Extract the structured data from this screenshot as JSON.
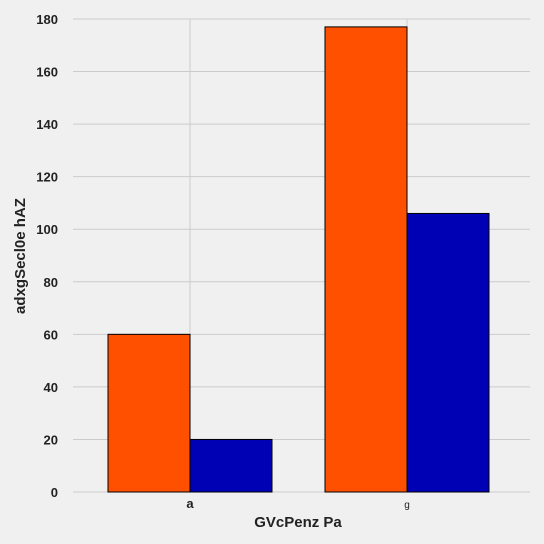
{
  "chart_data": {
    "type": "bar",
    "title": "",
    "xlabel": "GVcPenz Pa",
    "ylabel": "adxgSecl0e hAZ",
    "categories": [
      "a",
      "g"
    ],
    "series": [
      {
        "values": [
          60,
          177
        ],
        "color": "#ff5000"
      },
      {
        "values": [
          20,
          106
        ],
        "color": "#0000b4"
      }
    ],
    "ylim": [
      0,
      180
    ],
    "yticks": [
      0,
      20,
      40,
      60,
      80,
      100,
      120,
      140,
      160,
      180
    ],
    "grid": true,
    "legend": "none"
  },
  "colors": {
    "background": "#f0f0f0",
    "grid": "#cbcbcb",
    "bar_edge": "#000000"
  }
}
